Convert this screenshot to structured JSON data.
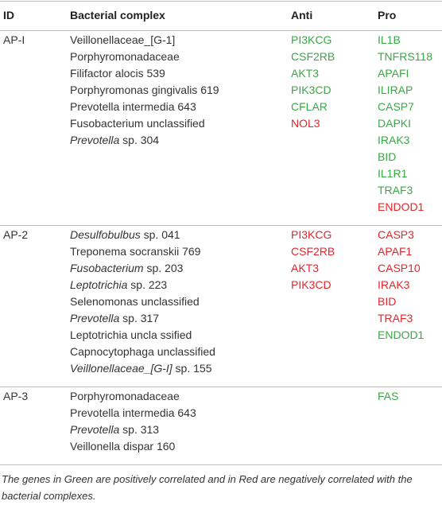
{
  "table": {
    "header": [
      "ID",
      "Bacterial complex",
      "Anti",
      "Pro"
    ],
    "colors": {
      "positive": "#3aa845",
      "negative": "#e3262d"
    },
    "groups": [
      {
        "id": "AP-I",
        "bacteria": [
          {
            "text": "Veillonellaceae_[G-1]"
          },
          {
            "text": "Porphyromonadaceae"
          },
          {
            "text": "Filifactor alocis 539"
          },
          {
            "text": "Porphyromonas gingivalis 619"
          },
          {
            "text": "Prevotella intermedia 643"
          },
          {
            "text": "Fusobacterium unclassified"
          },
          {
            "italic": "Prevotella",
            "text": " sp. 304"
          }
        ],
        "anti": [
          {
            "name": "PI3KCG",
            "correlation": "positive"
          },
          {
            "name": "CSF2RB",
            "correlation": "positive"
          },
          {
            "name": "AKT3",
            "correlation": "positive"
          },
          {
            "name": "PIK3CD",
            "correlation": "positive"
          },
          {
            "name": "CFLAR",
            "correlation": "positive"
          },
          {
            "name": "NOL3",
            "correlation": "negative"
          }
        ],
        "pro": [
          {
            "name": "IL1B",
            "correlation": "positive"
          },
          {
            "name": "TNFRS118",
            "correlation": "positive"
          },
          {
            "name": "APAFI",
            "correlation": "positive"
          },
          {
            "name": "ILIRAP",
            "correlation": "positive"
          },
          {
            "name": "CASP7",
            "correlation": "positive"
          },
          {
            "name": "DAPKI",
            "correlation": "positive"
          },
          {
            "name": "IRAK3",
            "correlation": "positive"
          },
          {
            "name": "BID",
            "correlation": "positive"
          },
          {
            "name": "IL1R1",
            "correlation": "positive"
          },
          {
            "name": "TRAF3",
            "correlation": "positive"
          },
          {
            "name": "ENDOD1",
            "correlation": "negative"
          }
        ]
      },
      {
        "id": "AP-2",
        "bacteria": [
          {
            "italic": "Desulfobulbus",
            "text": " sp. 041"
          },
          {
            "text": "Treponema socranskii 769"
          },
          {
            "italic": "Fusobacterium",
            "text": " sp. 203"
          },
          {
            "italic": "Leptotrichia",
            "text": " sp. 223"
          },
          {
            "text": "Selenomonas unclassified"
          },
          {
            "italic": "Prevotella",
            "text": " sp. 317"
          },
          {
            "text": "Leptotrichia uncla ssified"
          },
          {
            "text": "Capnocytophaga unclassified"
          },
          {
            "italic": "Veillonellaceae_[G-I]",
            "text": " sp. 155"
          }
        ],
        "anti": [
          {
            "name": "PI3KCG",
            "correlation": "negative"
          },
          {
            "name": "CSF2RB",
            "correlation": "negative"
          },
          {
            "name": "AKT3",
            "correlation": "negative"
          },
          {
            "name": "PIK3CD",
            "correlation": "negative"
          }
        ],
        "pro": [
          {
            "name": "CASP3",
            "correlation": "negative"
          },
          {
            "name": "APAF1",
            "correlation": "negative"
          },
          {
            "name": "CASP10",
            "correlation": "negative"
          },
          {
            "name": "IRAK3",
            "correlation": "negative"
          },
          {
            "name": "BID",
            "correlation": "negative"
          },
          {
            "name": "TRAF3",
            "correlation": "negative"
          },
          {
            "name": "ENDOD1",
            "correlation": "positive"
          }
        ]
      },
      {
        "id": "AP-3",
        "bacteria": [
          {
            "text": "Porphyromonadaceae"
          },
          {
            "text": "Prevotella intermedia 643"
          },
          {
            "italic": "Prevotella",
            "text": " sp. 313"
          },
          {
            "text": "Veillonella dispar 160"
          }
        ],
        "anti": [],
        "pro": [
          {
            "name": "FAS",
            "correlation": "positive"
          }
        ]
      }
    ],
    "footnote": "The genes in Green are positively correlated and in Red are negatively correlated with the bacterial complexes."
  }
}
